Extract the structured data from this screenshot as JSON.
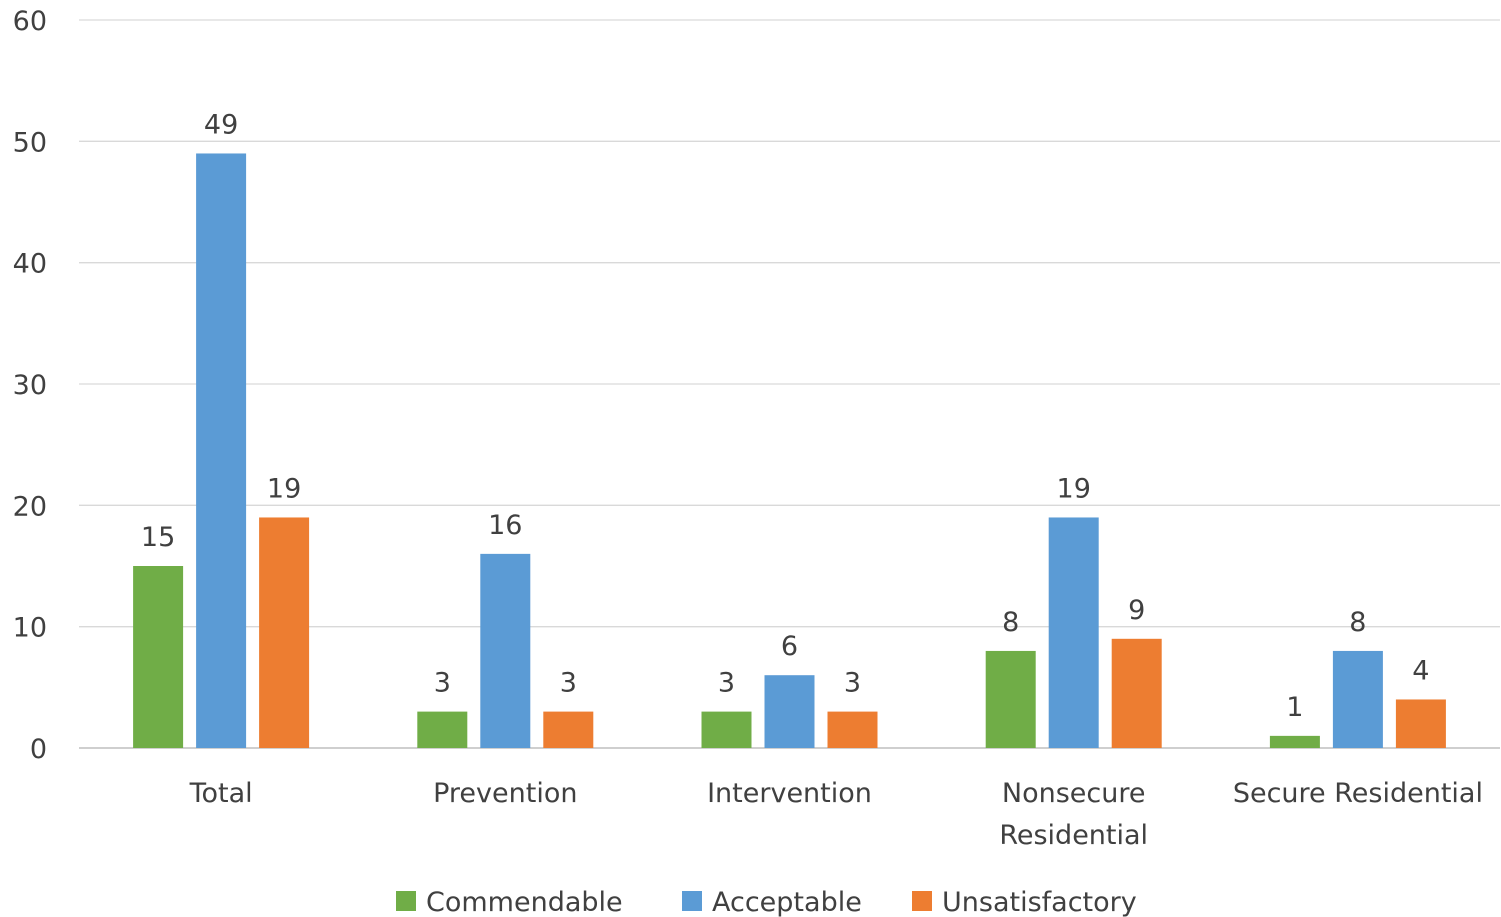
{
  "chart_data": {
    "type": "bar",
    "categories": [
      [
        "Total"
      ],
      [
        "Prevention"
      ],
      [
        "Intervention"
      ],
      [
        "Nonsecure",
        "Residential"
      ],
      [
        "Secure Residential"
      ]
    ],
    "series": [
      {
        "name": "Commendable",
        "color": "#70AD47",
        "values": [
          15,
          3,
          3,
          8,
          1
        ]
      },
      {
        "name": "Acceptable",
        "color": "#5B9BD5",
        "values": [
          49,
          16,
          6,
          19,
          8
        ]
      },
      {
        "name": "Unsatisfactory",
        "color": "#ED7D31",
        "values": [
          19,
          3,
          3,
          9,
          4
        ]
      }
    ],
    "ylim": [
      0,
      60
    ],
    "yticks": [
      0,
      10,
      20,
      30,
      40,
      50,
      60
    ],
    "grid": true,
    "legend_position": "bottom",
    "data_labels": true
  }
}
